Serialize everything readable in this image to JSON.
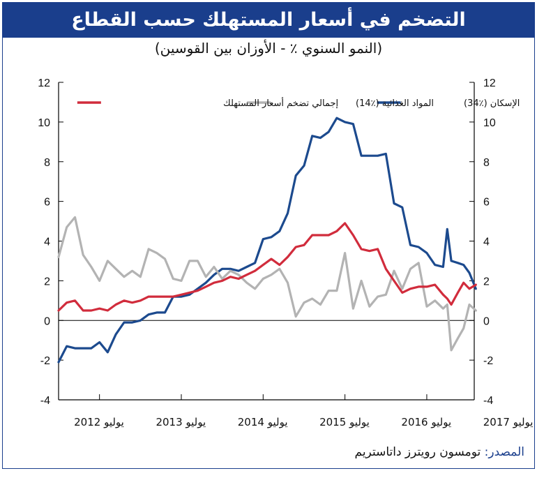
{
  "title": "التضخم في أسعار المستهلك حسب القطاع",
  "subtitle": "(النمو السنوي ٪ - الأوزان بين القوسين)",
  "source_label": "المصدر:",
  "source_text": "تومسون رويترز داتاستريم",
  "colors": {
    "frame": "#1a3e8c",
    "cpi": "#d12c3c",
    "food": "#b3b3b3",
    "housing": "#1c4a8e"
  },
  "chart_data": {
    "type": "line",
    "ylim": [
      -4,
      12
    ],
    "y_ticks": [
      -4,
      -2,
      0,
      2,
      4,
      6,
      8,
      10,
      12
    ],
    "x_labels": [
      {
        "label": "يوليو 2012",
        "x": 2012.5
      },
      {
        "label": "يوليو 2013",
        "x": 2013.5
      },
      {
        "label": "يوليو 2014",
        "x": 2014.5
      },
      {
        "label": "يوليو 2015",
        "x": 2015.5
      },
      {
        "label": "يوليو 2016",
        "x": 2016.5
      },
      {
        "label": "يوليو 2017",
        "x": 2017.5
      }
    ],
    "x_ticks": [
      2013,
      2014,
      2015,
      2016,
      2017
    ],
    "xlim": [
      2012.5,
      2017.58
    ],
    "legend_placement": "top",
    "series": [
      {
        "key": "housing",
        "name": "الإسكان (٪34)",
        "values": [
          [
            2012.5,
            -2.1
          ],
          [
            2012.6,
            -1.3
          ],
          [
            2012.7,
            -1.4
          ],
          [
            2012.8,
            -1.4
          ],
          [
            2012.9,
            -1.4
          ],
          [
            2013.0,
            -1.1
          ],
          [
            2013.1,
            -1.6
          ],
          [
            2013.2,
            -0.7
          ],
          [
            2013.3,
            -0.1
          ],
          [
            2013.4,
            -0.1
          ],
          [
            2013.5,
            0.0
          ],
          [
            2013.6,
            0.3
          ],
          [
            2013.7,
            0.4
          ],
          [
            2013.8,
            0.4
          ],
          [
            2013.9,
            1.2
          ],
          [
            2014.0,
            1.2
          ],
          [
            2014.1,
            1.3
          ],
          [
            2014.2,
            1.6
          ],
          [
            2014.3,
            1.9
          ],
          [
            2014.4,
            2.3
          ],
          [
            2014.5,
            2.6
          ],
          [
            2014.6,
            2.6
          ],
          [
            2014.7,
            2.5
          ],
          [
            2014.8,
            2.7
          ],
          [
            2014.9,
            2.9
          ],
          [
            2015.0,
            4.1
          ],
          [
            2015.1,
            4.2
          ],
          [
            2015.2,
            4.5
          ],
          [
            2015.3,
            5.4
          ],
          [
            2015.4,
            7.3
          ],
          [
            2015.5,
            7.8
          ],
          [
            2015.6,
            9.3
          ],
          [
            2015.7,
            9.2
          ],
          [
            2015.8,
            9.5
          ],
          [
            2015.9,
            10.2
          ],
          [
            2016.0,
            10.0
          ],
          [
            2016.1,
            9.9
          ],
          [
            2016.2,
            8.3
          ],
          [
            2016.3,
            8.3
          ],
          [
            2016.4,
            8.3
          ],
          [
            2016.5,
            8.4
          ],
          [
            2016.6,
            5.9
          ],
          [
            2016.7,
            5.7
          ],
          [
            2016.8,
            3.8
          ],
          [
            2016.9,
            3.7
          ],
          [
            2017.0,
            3.4
          ],
          [
            2017.1,
            2.8
          ],
          [
            2017.2,
            2.7
          ],
          [
            2017.25,
            4.6
          ],
          [
            2017.3,
            3.0
          ],
          [
            2017.38,
            2.9
          ],
          [
            2017.45,
            2.8
          ],
          [
            2017.52,
            2.4
          ],
          [
            2017.6,
            1.6
          ]
        ]
      },
      {
        "key": "food",
        "name": "المواد الغذائية (٪14)",
        "values": [
          [
            2012.5,
            3.2
          ],
          [
            2012.6,
            4.7
          ],
          [
            2012.7,
            5.2
          ],
          [
            2012.8,
            3.3
          ],
          [
            2012.9,
            2.7
          ],
          [
            2013.0,
            2.0
          ],
          [
            2013.1,
            3.0
          ],
          [
            2013.2,
            2.6
          ],
          [
            2013.3,
            2.2
          ],
          [
            2013.4,
            2.5
          ],
          [
            2013.5,
            2.2
          ],
          [
            2013.6,
            3.6
          ],
          [
            2013.7,
            3.4
          ],
          [
            2013.8,
            3.1
          ],
          [
            2013.9,
            2.1
          ],
          [
            2014.0,
            2.0
          ],
          [
            2014.1,
            3.0
          ],
          [
            2014.2,
            3.0
          ],
          [
            2014.3,
            2.2
          ],
          [
            2014.4,
            2.7
          ],
          [
            2014.5,
            2.1
          ],
          [
            2014.6,
            2.5
          ],
          [
            2014.7,
            2.3
          ],
          [
            2014.8,
            1.9
          ],
          [
            2014.9,
            1.6
          ],
          [
            2015.0,
            2.1
          ],
          [
            2015.1,
            2.3
          ],
          [
            2015.2,
            2.6
          ],
          [
            2015.3,
            1.9
          ],
          [
            2015.4,
            0.2
          ],
          [
            2015.5,
            0.9
          ],
          [
            2015.6,
            1.1
          ],
          [
            2015.7,
            0.8
          ],
          [
            2015.8,
            1.5
          ],
          [
            2015.9,
            1.5
          ],
          [
            2016.0,
            3.4
          ],
          [
            2016.1,
            0.6
          ],
          [
            2016.2,
            2.0
          ],
          [
            2016.3,
            0.7
          ],
          [
            2016.4,
            1.2
          ],
          [
            2016.5,
            1.3
          ],
          [
            2016.6,
            2.5
          ],
          [
            2016.7,
            1.6
          ],
          [
            2016.8,
            2.6
          ],
          [
            2016.9,
            2.9
          ],
          [
            2017.0,
            0.7
          ],
          [
            2017.1,
            1.0
          ],
          [
            2017.2,
            0.6
          ],
          [
            2017.25,
            0.8
          ],
          [
            2017.3,
            -1.5
          ],
          [
            2017.38,
            -0.9
          ],
          [
            2017.45,
            -0.4
          ],
          [
            2017.52,
            0.8
          ],
          [
            2017.6,
            0.5
          ]
        ]
      },
      {
        "key": "cpi",
        "name": "إجمالي تضخم أسعار المستهلك",
        "values": [
          [
            2012.5,
            0.5
          ],
          [
            2012.6,
            0.9
          ],
          [
            2012.7,
            1.0
          ],
          [
            2012.8,
            0.5
          ],
          [
            2012.9,
            0.5
          ],
          [
            2013.0,
            0.6
          ],
          [
            2013.1,
            0.5
          ],
          [
            2013.2,
            0.8
          ],
          [
            2013.3,
            1.0
          ],
          [
            2013.4,
            0.9
          ],
          [
            2013.5,
            1.0
          ],
          [
            2013.6,
            1.2
          ],
          [
            2013.7,
            1.2
          ],
          [
            2013.8,
            1.2
          ],
          [
            2013.9,
            1.2
          ],
          [
            2014.0,
            1.3
          ],
          [
            2014.1,
            1.4
          ],
          [
            2014.2,
            1.5
          ],
          [
            2014.3,
            1.7
          ],
          [
            2014.4,
            1.9
          ],
          [
            2014.5,
            2.0
          ],
          [
            2014.6,
            2.2
          ],
          [
            2014.7,
            2.1
          ],
          [
            2014.8,
            2.3
          ],
          [
            2014.9,
            2.5
          ],
          [
            2015.0,
            2.8
          ],
          [
            2015.1,
            3.1
          ],
          [
            2015.2,
            2.8
          ],
          [
            2015.3,
            3.2
          ],
          [
            2015.4,
            3.7
          ],
          [
            2015.5,
            3.8
          ],
          [
            2015.6,
            4.3
          ],
          [
            2015.7,
            4.3
          ],
          [
            2015.8,
            4.3
          ],
          [
            2015.9,
            4.5
          ],
          [
            2016.0,
            4.9
          ],
          [
            2016.1,
            4.3
          ],
          [
            2016.2,
            3.6
          ],
          [
            2016.3,
            3.5
          ],
          [
            2016.4,
            3.6
          ],
          [
            2016.5,
            2.6
          ],
          [
            2016.6,
            2.0
          ],
          [
            2016.7,
            1.4
          ],
          [
            2016.8,
            1.6
          ],
          [
            2016.9,
            1.7
          ],
          [
            2017.0,
            1.7
          ],
          [
            2017.1,
            1.8
          ],
          [
            2017.2,
            1.3
          ],
          [
            2017.25,
            1.1
          ],
          [
            2017.3,
            0.8
          ],
          [
            2017.38,
            1.4
          ],
          [
            2017.45,
            1.9
          ],
          [
            2017.52,
            1.6
          ],
          [
            2017.6,
            1.8
          ]
        ]
      }
    ]
  }
}
